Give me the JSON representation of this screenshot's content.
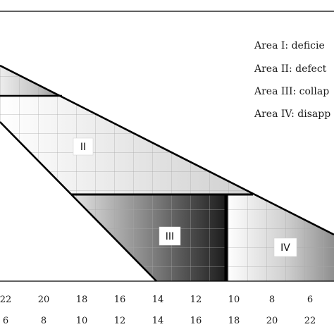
{
  "chart_data": {
    "type": "area",
    "title": "",
    "xlabel": "",
    "ylabel": "",
    "grid": true,
    "legend_position": "top-right",
    "x_axis_rows": [
      [
        "22",
        "20",
        "18",
        "16",
        "14",
        "12",
        "10",
        "8",
        "6"
      ],
      [
        "6",
        "8",
        "10",
        "12",
        "14",
        "16",
        "18",
        "20",
        "22"
      ]
    ],
    "legend": [
      "Area I:  deficie",
      "Area II: defect",
      "Area III: collap",
      "Area IV: disapp"
    ],
    "areas": [
      {
        "label": "",
        "name": "I"
      },
      {
        "label": "II",
        "name": "II"
      },
      {
        "label": "III",
        "name": "III"
      },
      {
        "label": "IV",
        "name": "IV"
      }
    ]
  }
}
